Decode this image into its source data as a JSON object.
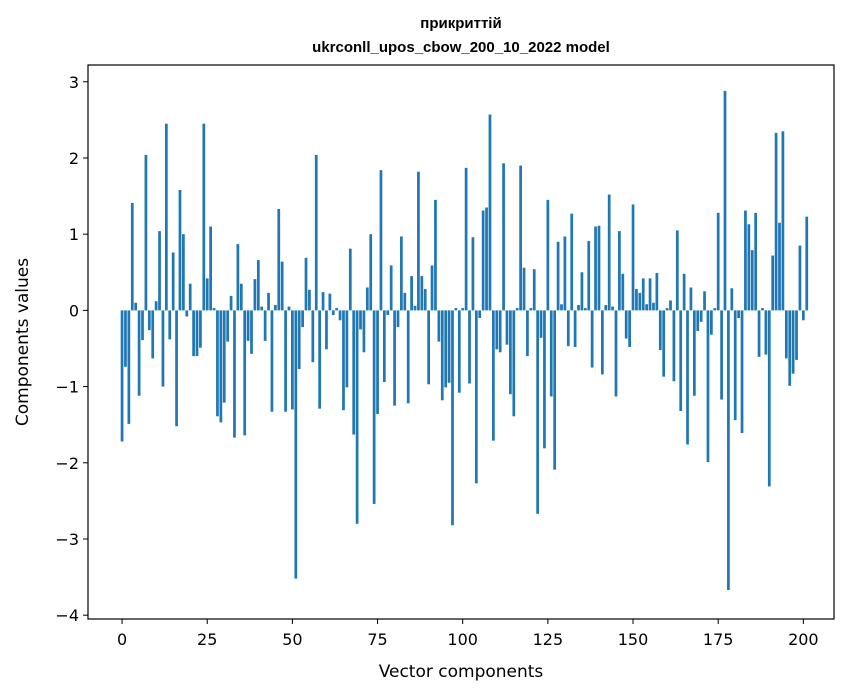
{
  "chart_data": {
    "type": "bar",
    "title": "прикриттій",
    "subtitle": "ukrconll_upos_cbow_200_10_2022 model",
    "xlabel": "Vector components",
    "ylabel": "Components values",
    "xlim": [
      -10,
      209
    ],
    "ylim": [
      -4.05,
      3.22
    ],
    "xticks": [
      0,
      25,
      50,
      75,
      100,
      125,
      150,
      175,
      200
    ],
    "xtick_labels": [
      "0",
      "25",
      "50",
      "75",
      "100",
      "125",
      "150",
      "175",
      "200"
    ],
    "yticks": [
      3,
      2,
      1,
      0,
      -1,
      -2,
      -3,
      -4
    ],
    "ytick_labels": [
      "3",
      "2",
      "1",
      "0",
      "−1",
      "−2",
      "−3",
      "−4"
    ],
    "bar_color": "#1f77b4",
    "grid": false,
    "values": [
      -1.72,
      -0.74,
      -1.49,
      1.41,
      0.1,
      -1.12,
      -0.39,
      2.04,
      -0.26,
      -0.63,
      0.12,
      1.04,
      -1.0,
      2.45,
      -0.38,
      0.76,
      -1.52,
      1.58,
      1.0,
      -0.08,
      0.35,
      -0.6,
      -0.6,
      -0.49,
      2.45,
      0.42,
      1.1,
      0.03,
      -1.39,
      -1.47,
      -1.21,
      -0.41,
      0.19,
      -1.67,
      0.87,
      0.35,
      -1.64,
      -0.4,
      -0.57,
      0.41,
      0.66,
      0.05,
      -0.4,
      0.23,
      -1.33,
      0.07,
      1.33,
      0.64,
      -1.33,
      0.05,
      -1.3,
      -3.52,
      -0.77,
      -0.22,
      0.69,
      0.27,
      -0.68,
      2.04,
      -1.29,
      0.24,
      -0.51,
      0.22,
      -0.06,
      0.03,
      -0.13,
      -1.31,
      -1.01,
      0.81,
      -1.63,
      -2.8,
      -0.25,
      -0.55,
      0.3,
      1.0,
      -2.54,
      -1.36,
      1.84,
      -0.94,
      -0.06,
      0.59,
      -1.25,
      -0.22,
      0.97,
      0.23,
      -1.22,
      0.45,
      0.06,
      1.82,
      0.45,
      0.28,
      -0.97,
      0.59,
      1.45,
      -0.41,
      -1.18,
      -1.01,
      -0.95,
      -2.82,
      0.03,
      -1.08,
      0.03,
      1.87,
      -0.96,
      0.96,
      -2.27,
      -0.1,
      1.31,
      1.35,
      2.57,
      -1.71,
      -0.51,
      -0.55,
      1.93,
      -0.45,
      -1.1,
      -1.39,
      0.03,
      1.9,
      0.56,
      -0.6,
      0.03,
      0.54,
      -2.67,
      -0.36,
      -1.81,
      1.45,
      -1.13,
      -2.09,
      0.9,
      0.08,
      0.97,
      -0.47,
      1.27,
      -0.48,
      0.07,
      0.5,
      0.03,
      0.91,
      -0.75,
      1.1,
      1.11,
      -0.84,
      0.07,
      1.52,
      0.05,
      -1.13,
      1.04,
      0.48,
      -0.37,
      -0.48,
      1.39,
      0.28,
      0.23,
      0.42,
      0.08,
      0.42,
      0.1,
      0.49,
      -0.52,
      -0.87,
      0.03,
      0.13,
      -0.93,
      1.05,
      -1.32,
      0.48,
      -1.76,
      0.3,
      -1.12,
      -0.27,
      -0.15,
      0.25,
      -1.99,
      -0.32,
      0.03,
      1.28,
      -1.17,
      2.88,
      -3.67,
      0.29,
      -1.44,
      -0.1,
      -1.61,
      1.31,
      1.13,
      0.79,
      1.28,
      -0.61,
      0.03,
      -0.58,
      -2.31,
      0.72,
      2.33,
      1.15,
      2.35,
      -0.63,
      -0.99,
      -0.83,
      -0.65,
      0.85,
      -0.13,
      1.23
    ]
  }
}
